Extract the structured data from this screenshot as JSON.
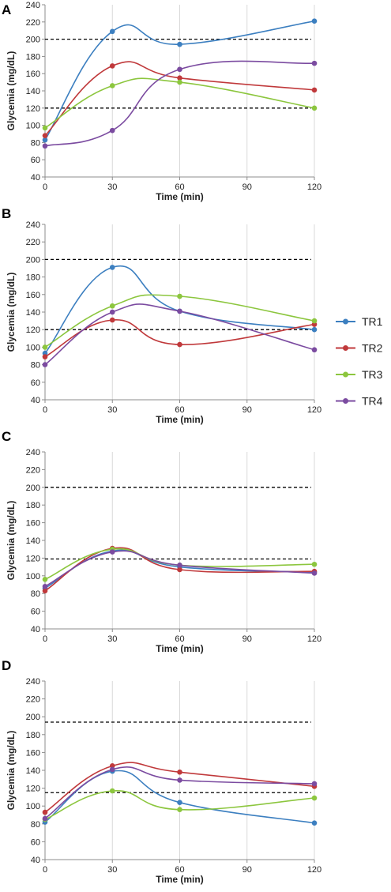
{
  "chart_data": [
    {
      "panel": "A",
      "type": "line",
      "xlabel": "Time (min)",
      "ylabel": "Glycemia (mg/dL)",
      "x": [
        0,
        30,
        60,
        120
      ],
      "xticks": [
        0,
        30,
        60,
        90,
        120
      ],
      "ylim": [
        40,
        240
      ],
      "yticks": [
        40,
        60,
        80,
        100,
        120,
        140,
        160,
        180,
        200,
        220,
        240
      ],
      "reference_lines": [
        200,
        120
      ],
      "series": [
        {
          "name": "TR1",
          "values": [
            83,
            209,
            194,
            221
          ]
        },
        {
          "name": "TR2",
          "values": [
            88,
            169,
            155,
            141
          ]
        },
        {
          "name": "TR3",
          "values": [
            97,
            146,
            150,
            120
          ]
        },
        {
          "name": "TR4",
          "values": [
            76,
            94,
            165,
            172
          ]
        }
      ]
    },
    {
      "panel": "B",
      "type": "line",
      "xlabel": "Time (min)",
      "ylabel": "Glycemia (mg/dL)",
      "x": [
        0,
        30,
        60,
        120
      ],
      "xticks": [
        0,
        30,
        60,
        90,
        120
      ],
      "ylim": [
        40,
        240
      ],
      "yticks": [
        40,
        60,
        80,
        100,
        120,
        140,
        160,
        180,
        200,
        220,
        240
      ],
      "reference_lines": [
        200,
        120
      ],
      "series": [
        {
          "name": "TR1",
          "values": [
            93,
            191,
            141,
            120
          ]
        },
        {
          "name": "TR2",
          "values": [
            89,
            131,
            103,
            126
          ]
        },
        {
          "name": "TR3",
          "values": [
            100,
            147,
            158,
            130
          ]
        },
        {
          "name": "TR4",
          "values": [
            80,
            140,
            141,
            97
          ]
        }
      ]
    },
    {
      "panel": "C",
      "type": "line",
      "xlabel": "Time (min)",
      "ylabel": "Glycemia (mg/dL)",
      "x": [
        0,
        30,
        60,
        120
      ],
      "xticks": [
        0,
        30,
        60,
        90,
        120
      ],
      "ylim": [
        40,
        240
      ],
      "yticks": [
        40,
        60,
        80,
        100,
        120,
        140,
        160,
        180,
        200,
        220,
        240
      ],
      "reference_lines": [
        200,
        119
      ],
      "series": [
        {
          "name": "TR1",
          "values": [
            86,
            128,
            110,
            104
          ]
        },
        {
          "name": "TR2",
          "values": [
            83,
            131,
            107,
            105
          ]
        },
        {
          "name": "TR3",
          "values": [
            96,
            130,
            112,
            113
          ]
        },
        {
          "name": "TR4",
          "values": [
            88,
            127,
            112,
            103
          ]
        }
      ]
    },
    {
      "panel": "D",
      "type": "line",
      "xlabel": "Time (min)",
      "ylabel": "Glycemia (mg/dL)",
      "x": [
        0,
        30,
        60,
        120
      ],
      "xticks": [
        0,
        30,
        60,
        90,
        120
      ],
      "ylim": [
        40,
        240
      ],
      "yticks": [
        40,
        60,
        80,
        100,
        120,
        140,
        160,
        180,
        200,
        220,
        240
      ],
      "reference_lines": [
        194,
        115
      ],
      "series": [
        {
          "name": "TR1",
          "values": [
            82,
            139,
            104,
            81
          ]
        },
        {
          "name": "TR2",
          "values": [
            93,
            145,
            138,
            122
          ]
        },
        {
          "name": "TR3",
          "values": [
            85,
            117,
            96,
            109
          ]
        },
        {
          "name": "TR4",
          "values": [
            86,
            141,
            129,
            125
          ]
        }
      ]
    }
  ],
  "legend": {
    "position": "right",
    "entries": [
      {
        "name": "TR1",
        "color": "#3C7FC0"
      },
      {
        "name": "TR2",
        "color": "#C0393B"
      },
      {
        "name": "TR3",
        "color": "#8CC63E"
      },
      {
        "name": "TR4",
        "color": "#7B4BA0"
      }
    ]
  },
  "colors": {
    "TR1": "#3C7FC0",
    "TR2": "#C0393B",
    "TR3": "#8CC63E",
    "TR4": "#7B4BA0",
    "reference_line": "#000000",
    "gridline": "#D9D9D9",
    "axis": "#8C8C8C"
  }
}
